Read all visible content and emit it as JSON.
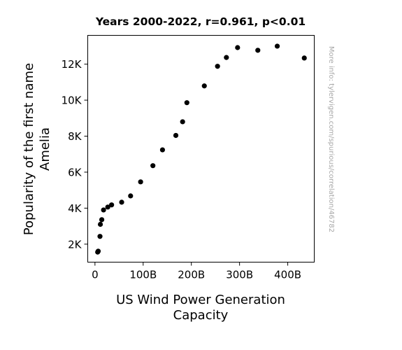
{
  "chart_data": {
    "type": "scatter",
    "title": "Years 2000-2022, r=0.961, p<0.01",
    "xlabel": [
      "US Wind Power Generation",
      "Capacity"
    ],
    "ylabel": [
      "Popularity of the first name",
      "Amelia"
    ],
    "xlim": [
      -15,
      455
    ],
    "ylim": [
      1000,
      13600
    ],
    "x_ticks": [
      {
        "value": 0,
        "label": "0"
      },
      {
        "value": 100,
        "label": "100B"
      },
      {
        "value": 200,
        "label": "200B"
      },
      {
        "value": 300,
        "label": "300B"
      },
      {
        "value": 400,
        "label": "400B"
      }
    ],
    "y_ticks": [
      {
        "value": 2000,
        "label": "2K"
      },
      {
        "value": 4000,
        "label": "4K"
      },
      {
        "value": 6000,
        "label": "6K"
      },
      {
        "value": 8000,
        "label": "8K"
      },
      {
        "value": 10000,
        "label": "10K"
      },
      {
        "value": 12000,
        "label": "12K"
      }
    ],
    "grid": false,
    "marker_color": "#000000",
    "points": [
      {
        "x": 5.6,
        "y": 1560
      },
      {
        "x": 6.7,
        "y": 1610
      },
      {
        "x": 10.4,
        "y": 2430
      },
      {
        "x": 11.2,
        "y": 3100
      },
      {
        "x": 14.1,
        "y": 3360
      },
      {
        "x": 17.8,
        "y": 3900
      },
      {
        "x": 26.6,
        "y": 4060
      },
      {
        "x": 34.5,
        "y": 4180
      },
      {
        "x": 55.4,
        "y": 4330
      },
      {
        "x": 73.9,
        "y": 4680
      },
      {
        "x": 94.7,
        "y": 5460
      },
      {
        "x": 120.2,
        "y": 6360
      },
      {
        "x": 140.1,
        "y": 7240
      },
      {
        "x": 167.8,
        "y": 8040
      },
      {
        "x": 181.8,
        "y": 8800
      },
      {
        "x": 190.7,
        "y": 9860
      },
      {
        "x": 226.9,
        "y": 10790
      },
      {
        "x": 254.3,
        "y": 11880
      },
      {
        "x": 272.7,
        "y": 12370
      },
      {
        "x": 295.9,
        "y": 12920
      },
      {
        "x": 337.9,
        "y": 12770
      },
      {
        "x": 378.2,
        "y": 13000
      },
      {
        "x": 434.3,
        "y": 12340
      }
    ]
  },
  "watermark": "More info: tylervigen.com/spurious/correlation/46782"
}
